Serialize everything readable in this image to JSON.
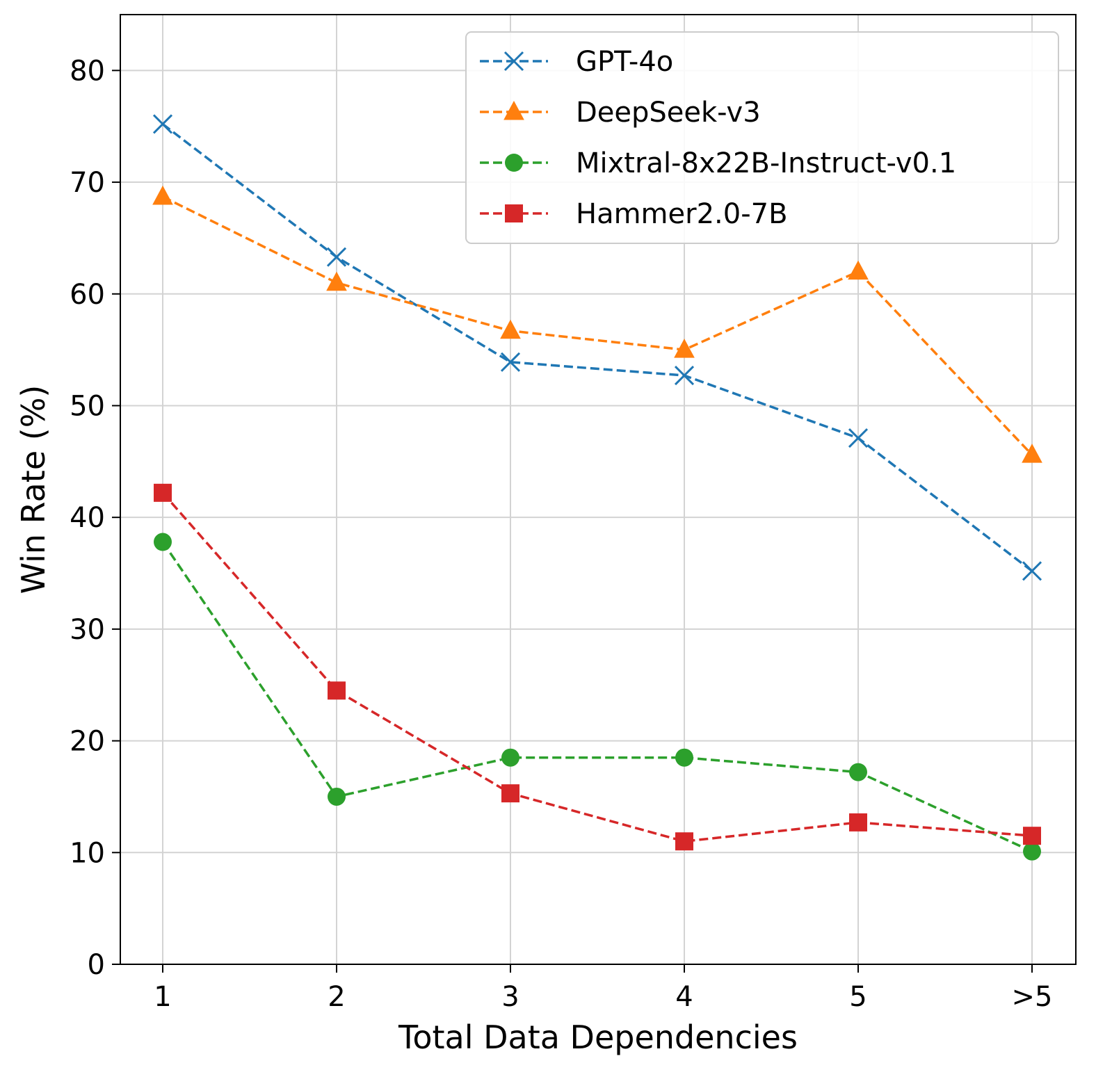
{
  "chart_data": {
    "type": "line",
    "title": "",
    "xlabel": "Total Data Dependencies",
    "ylabel": "Win Rate (%)",
    "categories": [
      "1",
      "2",
      "3",
      "4",
      "5",
      ">5"
    ],
    "ylim": [
      0,
      85
    ],
    "yticks": [
      0,
      10,
      20,
      30,
      40,
      50,
      60,
      70,
      80
    ],
    "grid": true,
    "legend_position": "top-right",
    "series": [
      {
        "name": "GPT-4o",
        "color": "#1f77b4",
        "marker": "x",
        "values": [
          75.2,
          63.3,
          53.9,
          52.7,
          47.1,
          35.2
        ]
      },
      {
        "name": "DeepSeek-v3",
        "color": "#ff7f0e",
        "marker": "triangle",
        "values": [
          68.7,
          61.0,
          56.7,
          55.0,
          62.0,
          45.6
        ]
      },
      {
        "name": "Mixtral-8x22B-Instruct-v0.1",
        "color": "#2ca02c",
        "marker": "circle",
        "values": [
          37.8,
          15.0,
          18.5,
          18.5,
          17.2,
          10.1
        ]
      },
      {
        "name": "Hammer2.0-7B",
        "color": "#d62728",
        "marker": "square",
        "values": [
          42.2,
          24.5,
          15.3,
          11.0,
          12.7,
          11.5
        ]
      }
    ]
  }
}
